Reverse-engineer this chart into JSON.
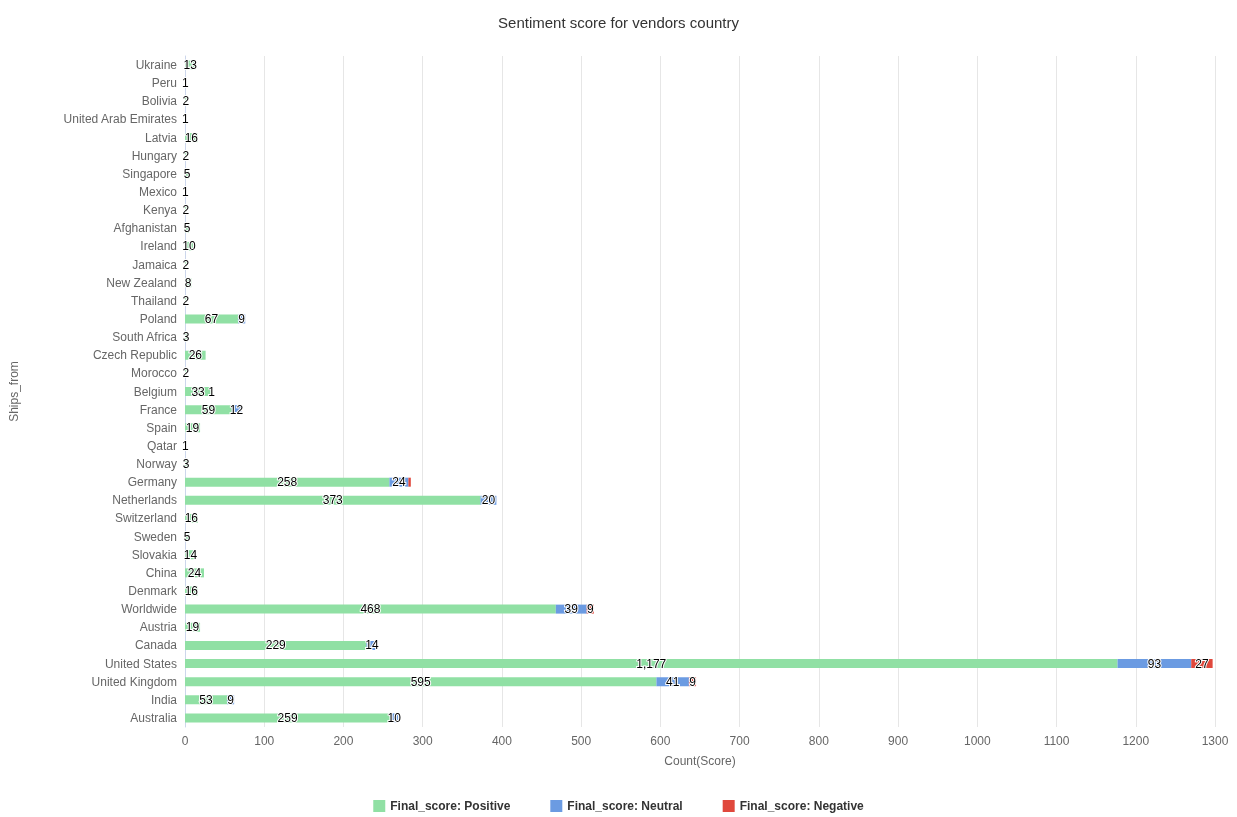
{
  "chart_data": {
    "type": "bar",
    "orientation": "horizontal",
    "stacked": true,
    "title": "Sentiment score for vendors country",
    "xlabel": "Count(Score)",
    "ylabel": "Ships_from",
    "categories": [
      "Ukraine",
      "Peru",
      "Bolivia",
      "United Arab Emirates",
      "Latvia",
      "Hungary",
      "Singapore",
      "Mexico",
      "Kenya",
      "Afghanistan",
      "Ireland",
      "Jamaica",
      "New Zealand",
      "Thailand",
      "Poland",
      "South Africa",
      "Czech Republic",
      "Morocco",
      "Belgium",
      "France",
      "Spain",
      "Qatar",
      "Norway",
      "Germany",
      "Netherlands",
      "Switzerland",
      "Sweden",
      "Slovakia",
      "China",
      "Denmark",
      "Worldwide",
      "Austria",
      "Canada",
      "United States",
      "United Kingdom",
      "India",
      "Australia"
    ],
    "series": [
      {
        "name": "Final_score: Positive",
        "color": "#90e0a4",
        "values": [
          13,
          1,
          2,
          1,
          16,
          2,
          5,
          1,
          2,
          5,
          10,
          2,
          8,
          2,
          67,
          3,
          26,
          2,
          33,
          59,
          19,
          1,
          3,
          258,
          373,
          16,
          5,
          14,
          24,
          16,
          468,
          19,
          229,
          1177,
          595,
          53,
          259
        ],
        "value_labels": [
          "13",
          "1",
          "2",
          "1",
          "16",
          "2",
          "5",
          "1",
          "2",
          "5",
          "10",
          "2",
          "8",
          "2",
          "67",
          "3",
          "26",
          "2",
          "33",
          "59",
          "19",
          "1",
          "3",
          "258",
          "373",
          "16",
          "5",
          "14",
          "24",
          "16",
          "468",
          "19",
          "229",
          "1,177",
          "595",
          "53",
          "259"
        ]
      },
      {
        "name": "Final_score: Neutral",
        "color": "#6b9be2",
        "values": [
          null,
          null,
          null,
          null,
          null,
          null,
          null,
          null,
          null,
          null,
          null,
          null,
          null,
          null,
          9,
          null,
          null,
          null,
          1,
          12,
          null,
          null,
          null,
          24,
          20,
          null,
          null,
          null,
          null,
          null,
          39,
          null,
          14,
          93,
          41,
          9,
          10
        ],
        "value_labels": [
          null,
          null,
          null,
          null,
          null,
          null,
          null,
          null,
          null,
          null,
          null,
          null,
          null,
          null,
          "9",
          null,
          null,
          null,
          "1",
          "12",
          null,
          null,
          null,
          "24",
          "20",
          null,
          null,
          null,
          null,
          null,
          "39",
          null,
          "14",
          "93",
          "41",
          "9",
          "10"
        ]
      },
      {
        "name": "Final_score: Negative",
        "color": "#e0483c",
        "values": [
          null,
          null,
          null,
          null,
          null,
          null,
          null,
          null,
          null,
          null,
          null,
          null,
          null,
          null,
          null,
          null,
          null,
          null,
          null,
          null,
          null,
          null,
          null,
          3,
          null,
          null,
          null,
          null,
          null,
          null,
          9,
          null,
          null,
          27,
          9,
          null,
          null
        ],
        "value_labels": [
          null,
          null,
          null,
          null,
          null,
          null,
          null,
          null,
          null,
          null,
          null,
          null,
          null,
          null,
          null,
          null,
          null,
          null,
          null,
          null,
          null,
          null,
          null,
          null,
          null,
          null,
          null,
          null,
          null,
          null,
          "9",
          null,
          null,
          "27",
          "9",
          null,
          null
        ]
      }
    ],
    "xlim": [
      0,
      1300
    ],
    "xticks": [
      0,
      100,
      200,
      300,
      400,
      500,
      600,
      700,
      800,
      900,
      1000,
      1100,
      1200,
      1300
    ],
    "grid": "x",
    "legend": "bottom"
  }
}
